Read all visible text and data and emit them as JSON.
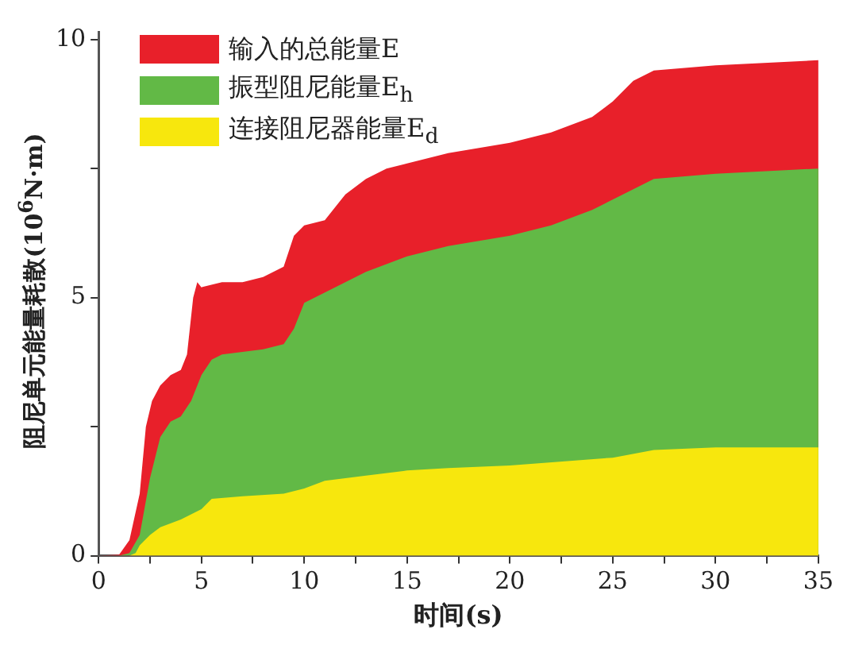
{
  "chart_data": {
    "type": "area",
    "xlabel": "时间(s)",
    "ylabel": "阻尼单元能量耗散(10$^{6}$N·m)",
    "xlim": [
      0,
      35
    ],
    "ylim": [
      0,
      10.15
    ],
    "xticks": [
      0,
      {
        "value": 2.5,
        "label": null
      },
      5,
      {
        "value": 7.5,
        "label": null
      },
      10,
      {
        "value": 12.5,
        "label": null
      },
      15,
      {
        "value": 17.5,
        "label": null
      },
      20,
      {
        "value": 22.5,
        "label": null
      },
      25,
      {
        "value": 27.5,
        "label": null
      },
      30,
      {
        "value": 32.5,
        "label": null
      },
      35
    ],
    "yticks": [
      0,
      {
        "value": 2.5,
        "label": null
      },
      5,
      {
        "value": 7.5,
        "label": null
      },
      10
    ],
    "grid": false,
    "legend": "top left",
    "series": [
      {
        "name": "输入的总能量E",
        "color": "#e8202a",
        "x": [
          0,
          1,
          1.5,
          2,
          2.3,
          2.6,
          3,
          3.5,
          4,
          4.3,
          4.6,
          4.8,
          5,
          6,
          7,
          8,
          9,
          9.5,
          10,
          11,
          12,
          13,
          14,
          15,
          17,
          20,
          22,
          24,
          25,
          26,
          27,
          30,
          35
        ],
        "values": [
          0,
          0.02,
          0.3,
          1.2,
          2.5,
          3.0,
          3.3,
          3.5,
          3.6,
          3.9,
          5.0,
          5.3,
          5.2,
          5.3,
          5.3,
          5.4,
          5.6,
          6.2,
          6.4,
          6.5,
          7.0,
          7.3,
          7.5,
          7.6,
          7.8,
          8.0,
          8.2,
          8.5,
          8.8,
          9.2,
          9.4,
          9.5,
          9.6
        ]
      },
      {
        "name": "振型阻尼能量E$_{h}$",
        "color": "#62b946",
        "x": [
          0,
          1,
          1.5,
          2,
          2.5,
          3,
          3.5,
          4,
          4.5,
          5,
          5.5,
          6,
          8,
          9,
          9.5,
          10,
          11,
          12,
          13,
          15,
          17,
          20,
          22,
          24,
          26,
          27,
          30,
          35
        ],
        "values": [
          0,
          0,
          0.05,
          0.4,
          1.5,
          2.3,
          2.6,
          2.7,
          3.0,
          3.5,
          3.8,
          3.9,
          4.0,
          4.1,
          4.4,
          4.9,
          5.1,
          5.3,
          5.5,
          5.8,
          6.0,
          6.2,
          6.4,
          6.7,
          7.1,
          7.3,
          7.4,
          7.5
        ]
      },
      {
        "name": "连接阻尼器能量E$_{d}$",
        "color": "#f7e70d",
        "x": [
          0,
          1.5,
          1.8,
          2,
          2.5,
          3,
          4,
          5,
          5.5,
          7,
          9,
          10,
          11,
          13,
          15,
          17,
          20,
          25,
          27,
          30,
          35
        ],
        "values": [
          0,
          0,
          0.05,
          0.2,
          0.4,
          0.55,
          0.7,
          0.9,
          1.1,
          1.15,
          1.2,
          1.3,
          1.45,
          1.55,
          1.65,
          1.7,
          1.75,
          1.9,
          2.05,
          2.1,
          2.1
        ]
      }
    ]
  }
}
